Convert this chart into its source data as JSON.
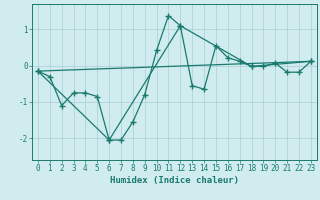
{
  "xlabel": "Humidex (Indice chaleur)",
  "background_color": "#d0ecee",
  "grid_color": "#aacfd4",
  "line_color": "#1a7a6e",
  "xlim": [
    -0.5,
    23.5
  ],
  "ylim": [
    -2.6,
    1.7
  ],
  "yticks": [
    -2,
    -1,
    0,
    1
  ],
  "xticks": [
    0,
    1,
    2,
    3,
    4,
    5,
    6,
    7,
    8,
    9,
    10,
    11,
    12,
    13,
    14,
    15,
    16,
    17,
    18,
    19,
    20,
    21,
    22,
    23
  ],
  "series1_x": [
    0,
    1,
    2,
    3,
    4,
    5,
    6,
    7,
    8,
    9,
    10,
    11,
    12,
    13,
    14,
    15,
    16,
    17,
    18,
    19,
    20,
    21,
    22,
    23
  ],
  "series1_y": [
    -0.15,
    -0.3,
    -1.1,
    -0.75,
    -0.75,
    -0.85,
    -2.05,
    -2.05,
    -1.55,
    -0.8,
    0.42,
    1.38,
    1.1,
    -0.55,
    -0.65,
    0.55,
    0.22,
    0.12,
    -0.02,
    -0.02,
    0.07,
    -0.18,
    -0.18,
    0.12
  ],
  "series2_x": [
    0,
    6,
    12,
    18,
    23
  ],
  "series2_y": [
    -0.15,
    -2.05,
    1.1,
    -0.02,
    0.12
  ],
  "series3_x": [
    0,
    23
  ],
  "series3_y": [
    -0.15,
    0.12
  ],
  "tick_font_size": 5.5,
  "xlabel_font_size": 6.5,
  "figsize": [
    3.2,
    2.0
  ],
  "dpi": 100
}
